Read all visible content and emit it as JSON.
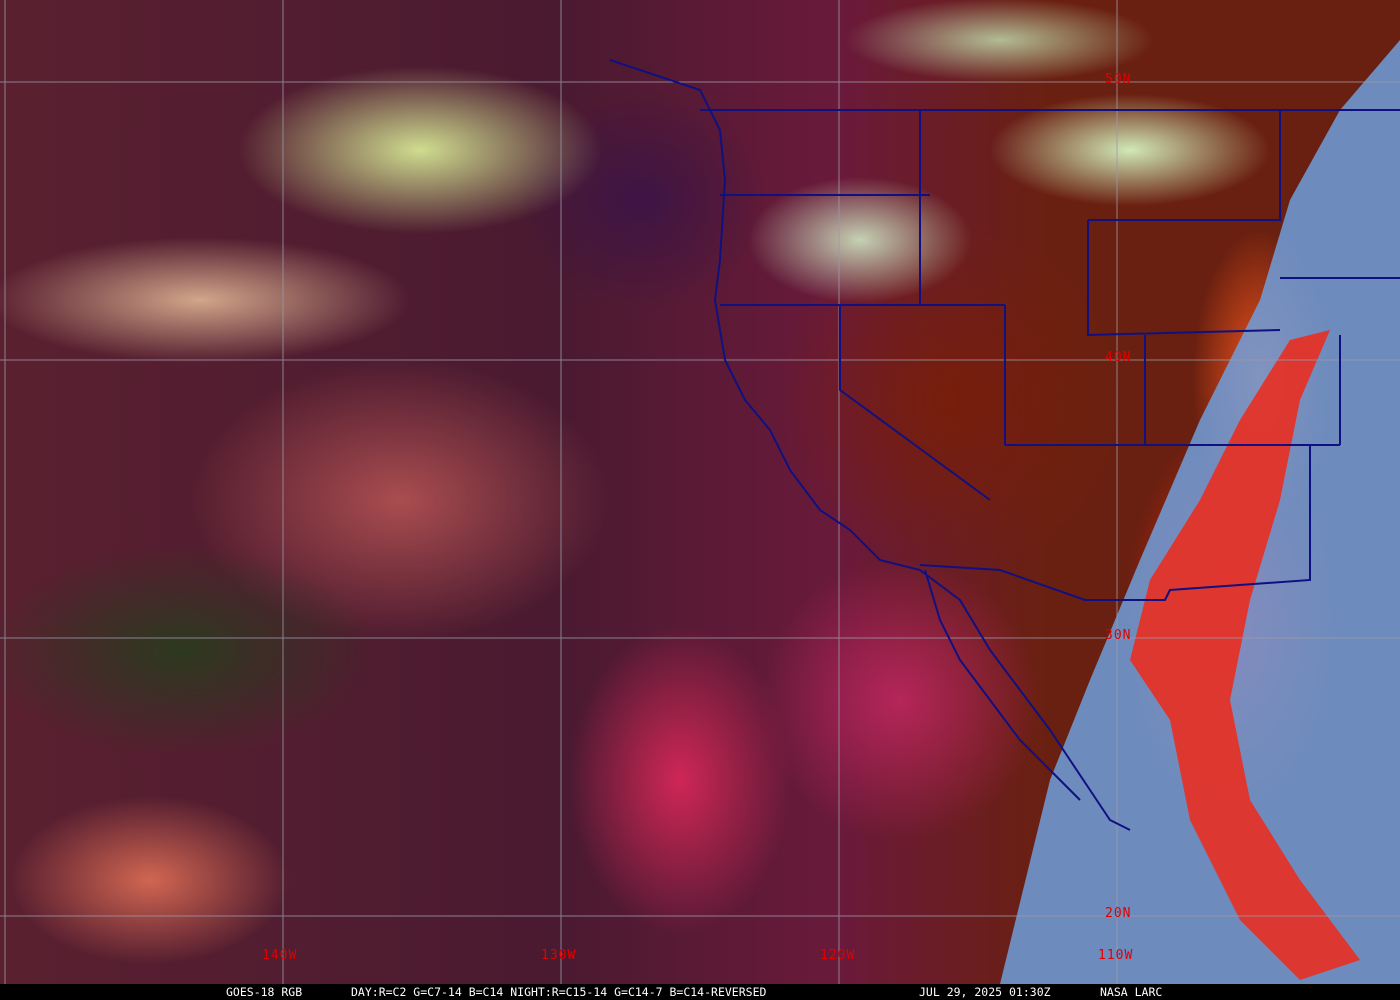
{
  "map": {
    "product": "GOES-18 RGB",
    "recipe": "DAY:R=C2 G=C7-14 B=C14 NIGHT:R=C15-14 G=C14-7 B=C14-REVERSED",
    "timestamp": "JUL 29, 2025 01:30Z",
    "credit": "NASA LARC",
    "latitude_labels": [
      "50N",
      "40N",
      "30N",
      "20N"
    ],
    "longitude_labels": [
      "140W",
      "130W",
      "120W",
      "110W"
    ],
    "colors": {
      "label": "#e00000",
      "borders": "#101080",
      "grid": "#9a9aa8",
      "night_side": "#7aa8e0"
    }
  }
}
